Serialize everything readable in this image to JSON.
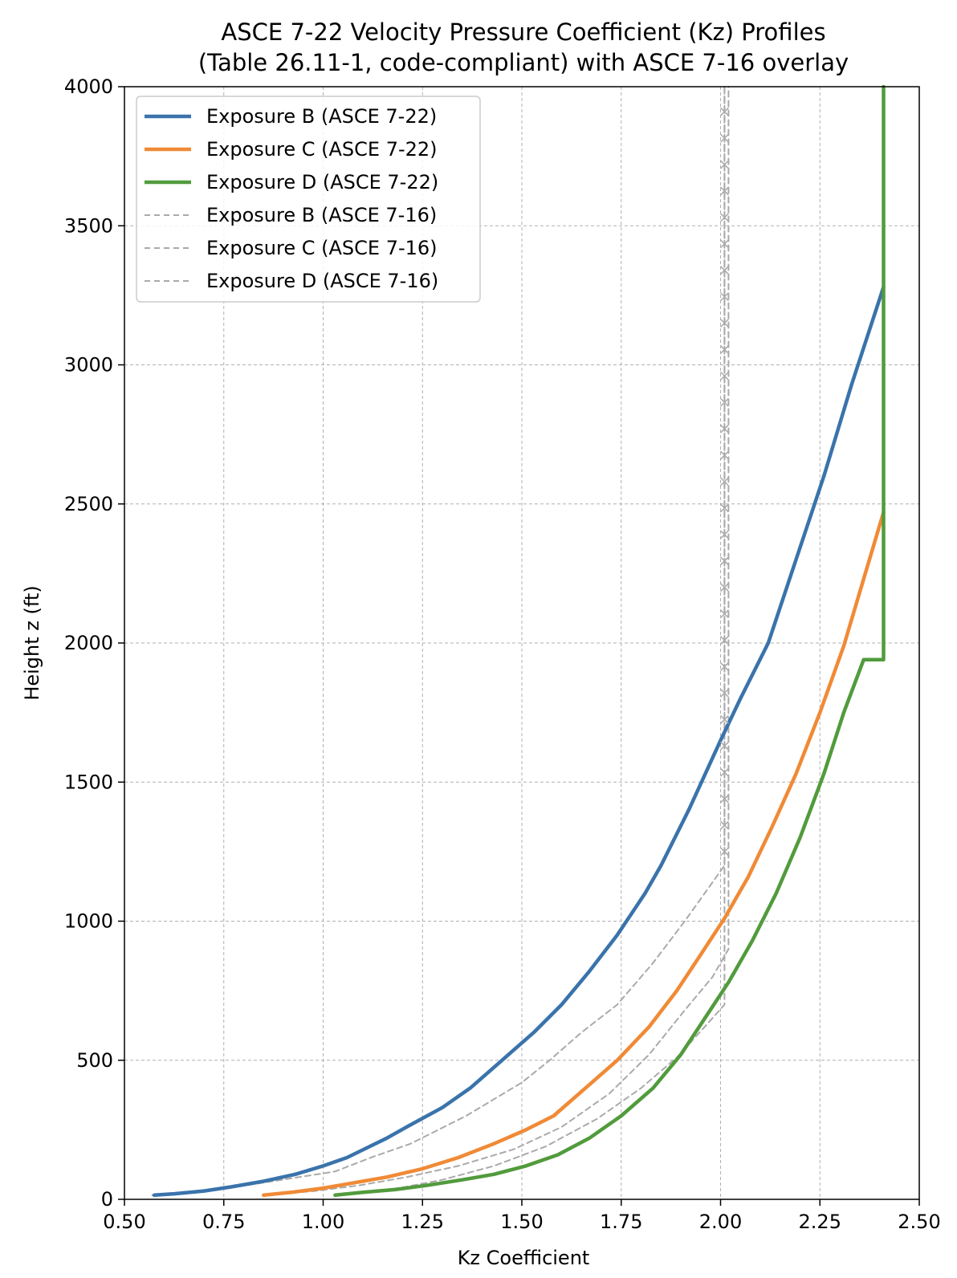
{
  "chart_data": {
    "type": "line",
    "title": "ASCE 7-22 Velocity Pressure Coefficient (Kz) Profiles",
    "subtitle": "(Table 26.11-1, code-compliant) with ASCE 7-16 overlay",
    "xlabel": "Kz Coefficient",
    "ylabel": "Height z (ft)",
    "xlim": [
      0.5,
      2.5
    ],
    "ylim": [
      0,
      4000
    ],
    "xticks": [
      "0.50",
      "0.75",
      "1.00",
      "1.25",
      "1.50",
      "1.75",
      "2.00",
      "2.25",
      "2.50"
    ],
    "yticks": [
      "0",
      "500",
      "1000",
      "1500",
      "2000",
      "2500",
      "3000",
      "3500",
      "4000"
    ],
    "grid": true,
    "legend_position": "top-left",
    "series": [
      {
        "name": "Exposure B (ASCE 7-22)",
        "color": "#3a73ab",
        "style": "solid",
        "x": [
          0.575,
          0.625,
          0.7,
          0.77,
          0.85,
          0.93,
          1.0,
          1.06,
          1.11,
          1.16,
          1.21,
          1.3,
          1.37,
          1.45,
          1.53,
          1.6,
          1.67,
          1.74,
          1.81,
          1.85,
          1.92,
          2.0,
          2.05,
          2.12,
          2.19,
          2.26,
          2.33,
          2.41
        ],
        "y": [
          15,
          20,
          30,
          45,
          65,
          90,
          120,
          150,
          185,
          220,
          260,
          330,
          400,
          500,
          600,
          700,
          820,
          950,
          1100,
          1200,
          1400,
          1650,
          1800,
          2000,
          2300,
          2600,
          2930,
          3280
        ]
      },
      {
        "name": "Exposure C (ASCE 7-22)",
        "color": "#f08a36",
        "style": "solid",
        "x": [
          0.85,
          0.92,
          1.0,
          1.08,
          1.16,
          1.25,
          1.34,
          1.43,
          1.51,
          1.58,
          1.66,
          1.74,
          1.82,
          1.89,
          1.95,
          2.01,
          2.07,
          2.13,
          2.19,
          2.25,
          2.31,
          2.36,
          2.41
        ],
        "y": [
          15,
          25,
          40,
          60,
          80,
          110,
          150,
          200,
          250,
          300,
          400,
          500,
          620,
          750,
          880,
          1010,
          1160,
          1340,
          1530,
          1750,
          1990,
          2230,
          2470
        ]
      },
      {
        "name": "Exposure D (ASCE 7-22)",
        "color": "#519b3c",
        "style": "solid",
        "x": [
          1.03,
          1.1,
          1.18,
          1.26,
          1.35,
          1.43,
          1.51,
          1.59,
          1.67,
          1.75,
          1.83,
          1.9,
          1.96,
          2.02,
          2.08,
          2.14,
          2.2,
          2.26,
          2.31,
          2.36,
          2.41,
          2.41
        ],
        "y": [
          15,
          25,
          35,
          50,
          70,
          90,
          120,
          160,
          220,
          300,
          400,
          520,
          650,
          780,
          930,
          1100,
          1300,
          1530,
          1750,
          1940,
          1940,
          4000
        ]
      },
      {
        "name": "Exposure B (ASCE 7-16)",
        "color": "#aaaaaa",
        "style": "dashed",
        "x": [
          0.57,
          0.64,
          0.7,
          0.76,
          0.85,
          0.94,
          1.03,
          1.12,
          1.22,
          1.36,
          1.5,
          1.57,
          1.65,
          1.74,
          1.83,
          1.91,
          1.97,
          2.01,
          2.01
        ],
        "y": [
          15,
          20,
          30,
          40,
          60,
          80,
          100,
          150,
          200,
          300,
          420,
          500,
          600,
          700,
          850,
          1000,
          1120,
          1200,
          4000
        ]
      },
      {
        "name": "Exposure C (ASCE 7-16)",
        "color": "#aaaaaa",
        "style": "dashed",
        "x": [
          0.85,
          0.9,
          0.98,
          1.09,
          1.21,
          1.34,
          1.48,
          1.6,
          1.72,
          1.82,
          1.91,
          1.98,
          2.02,
          2.02
        ],
        "y": [
          15,
          20,
          30,
          50,
          80,
          120,
          180,
          260,
          380,
          520,
          680,
          800,
          900,
          4000
        ]
      },
      {
        "name": "Exposure D (ASCE 7-16)",
        "color": "#aaaaaa",
        "style": "dashed",
        "x": [
          1.03,
          1.1,
          1.19,
          1.3,
          1.43,
          1.56,
          1.69,
          1.8,
          1.89,
          1.96,
          2.01,
          2.01
        ],
        "y": [
          15,
          25,
          40,
          70,
          120,
          190,
          290,
          400,
          510,
          620,
          700,
          4000
        ]
      }
    ]
  }
}
